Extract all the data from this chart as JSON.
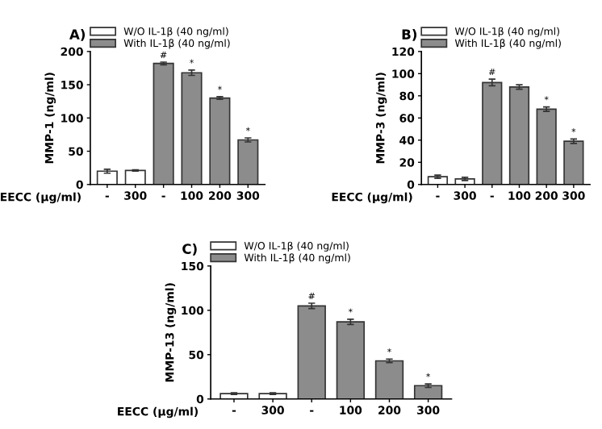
{
  "chart_data": [
    {
      "type": "bar",
      "title": "A)",
      "xlabel": "EECC (μg/ml)",
      "ylabel": "MMP-1 (ng/ml)",
      "categories": [
        "-",
        "300",
        "-",
        "100",
        "200",
        "300"
      ],
      "ylim": [
        0,
        200
      ],
      "yticks": [
        0,
        50,
        100,
        150,
        200
      ],
      "legend": "top",
      "grid": false,
      "series": [
        {
          "name": "W/O IL-1β (40 ng/ml)",
          "color": "#ffffff",
          "values": [
            20,
            21,
            null,
            null,
            null,
            null
          ],
          "errors": [
            3,
            1,
            null,
            null,
            null,
            null
          ]
        },
        {
          "name": "With IL-1β (40 ng/ml)",
          "color": "#8c8c8c",
          "values": [
            null,
            null,
            182,
            168,
            130,
            67
          ],
          "errors": [
            null,
            null,
            2,
            4,
            2,
            3
          ],
          "value_labels": [
            null,
            null,
            "#",
            "*",
            "*",
            "*"
          ]
        }
      ]
    },
    {
      "type": "bar",
      "title": "B)",
      "xlabel": "EECC (μg/ml)",
      "ylabel": "MMP-3 (ng/ml)",
      "categories": [
        "-",
        "300",
        "-",
        "100",
        "200",
        "300"
      ],
      "ylim": [
        0,
        120
      ],
      "yticks": [
        0,
        20,
        40,
        60,
        80,
        100,
        120
      ],
      "legend": "top",
      "grid": false,
      "series": [
        {
          "name": "W/O IL-1β (40 ng/ml)",
          "color": "#ffffff",
          "values": [
            7,
            5,
            null,
            null,
            null,
            null
          ],
          "errors": [
            1.5,
            1.5,
            null,
            null,
            null,
            null
          ]
        },
        {
          "name": "With IL-1β (40 ng/ml)",
          "color": "#8c8c8c",
          "values": [
            null,
            null,
            92,
            88,
            68,
            39
          ],
          "errors": [
            null,
            null,
            3,
            2,
            2,
            2
          ],
          "value_labels": [
            null,
            null,
            "#",
            null,
            "*",
            "*"
          ]
        }
      ]
    },
    {
      "type": "bar",
      "title": "C)",
      "xlabel": "EECC (μg/ml)",
      "ylabel": "MMP-13 (ng/ml)",
      "categories": [
        "-",
        "300",
        "-",
        "100",
        "200",
        "300"
      ],
      "ylim": [
        0,
        150
      ],
      "yticks": [
        0,
        50,
        100,
        150
      ],
      "legend": "top",
      "grid": false,
      "series": [
        {
          "name": "W/O IL-1β (40 ng/ml)",
          "color": "#ffffff",
          "values": [
            6,
            6,
            null,
            null,
            null,
            null
          ],
          "errors": [
            1,
            1,
            null,
            null,
            null,
            null
          ]
        },
        {
          "name": "With IL-1β (40 ng/ml)",
          "color": "#8c8c8c",
          "values": [
            null,
            null,
            105,
            87,
            43,
            15
          ],
          "errors": [
            null,
            null,
            3,
            3,
            2,
            2
          ],
          "value_labels": [
            null,
            null,
            "#",
            "*",
            "*",
            "*"
          ]
        }
      ]
    }
  ]
}
